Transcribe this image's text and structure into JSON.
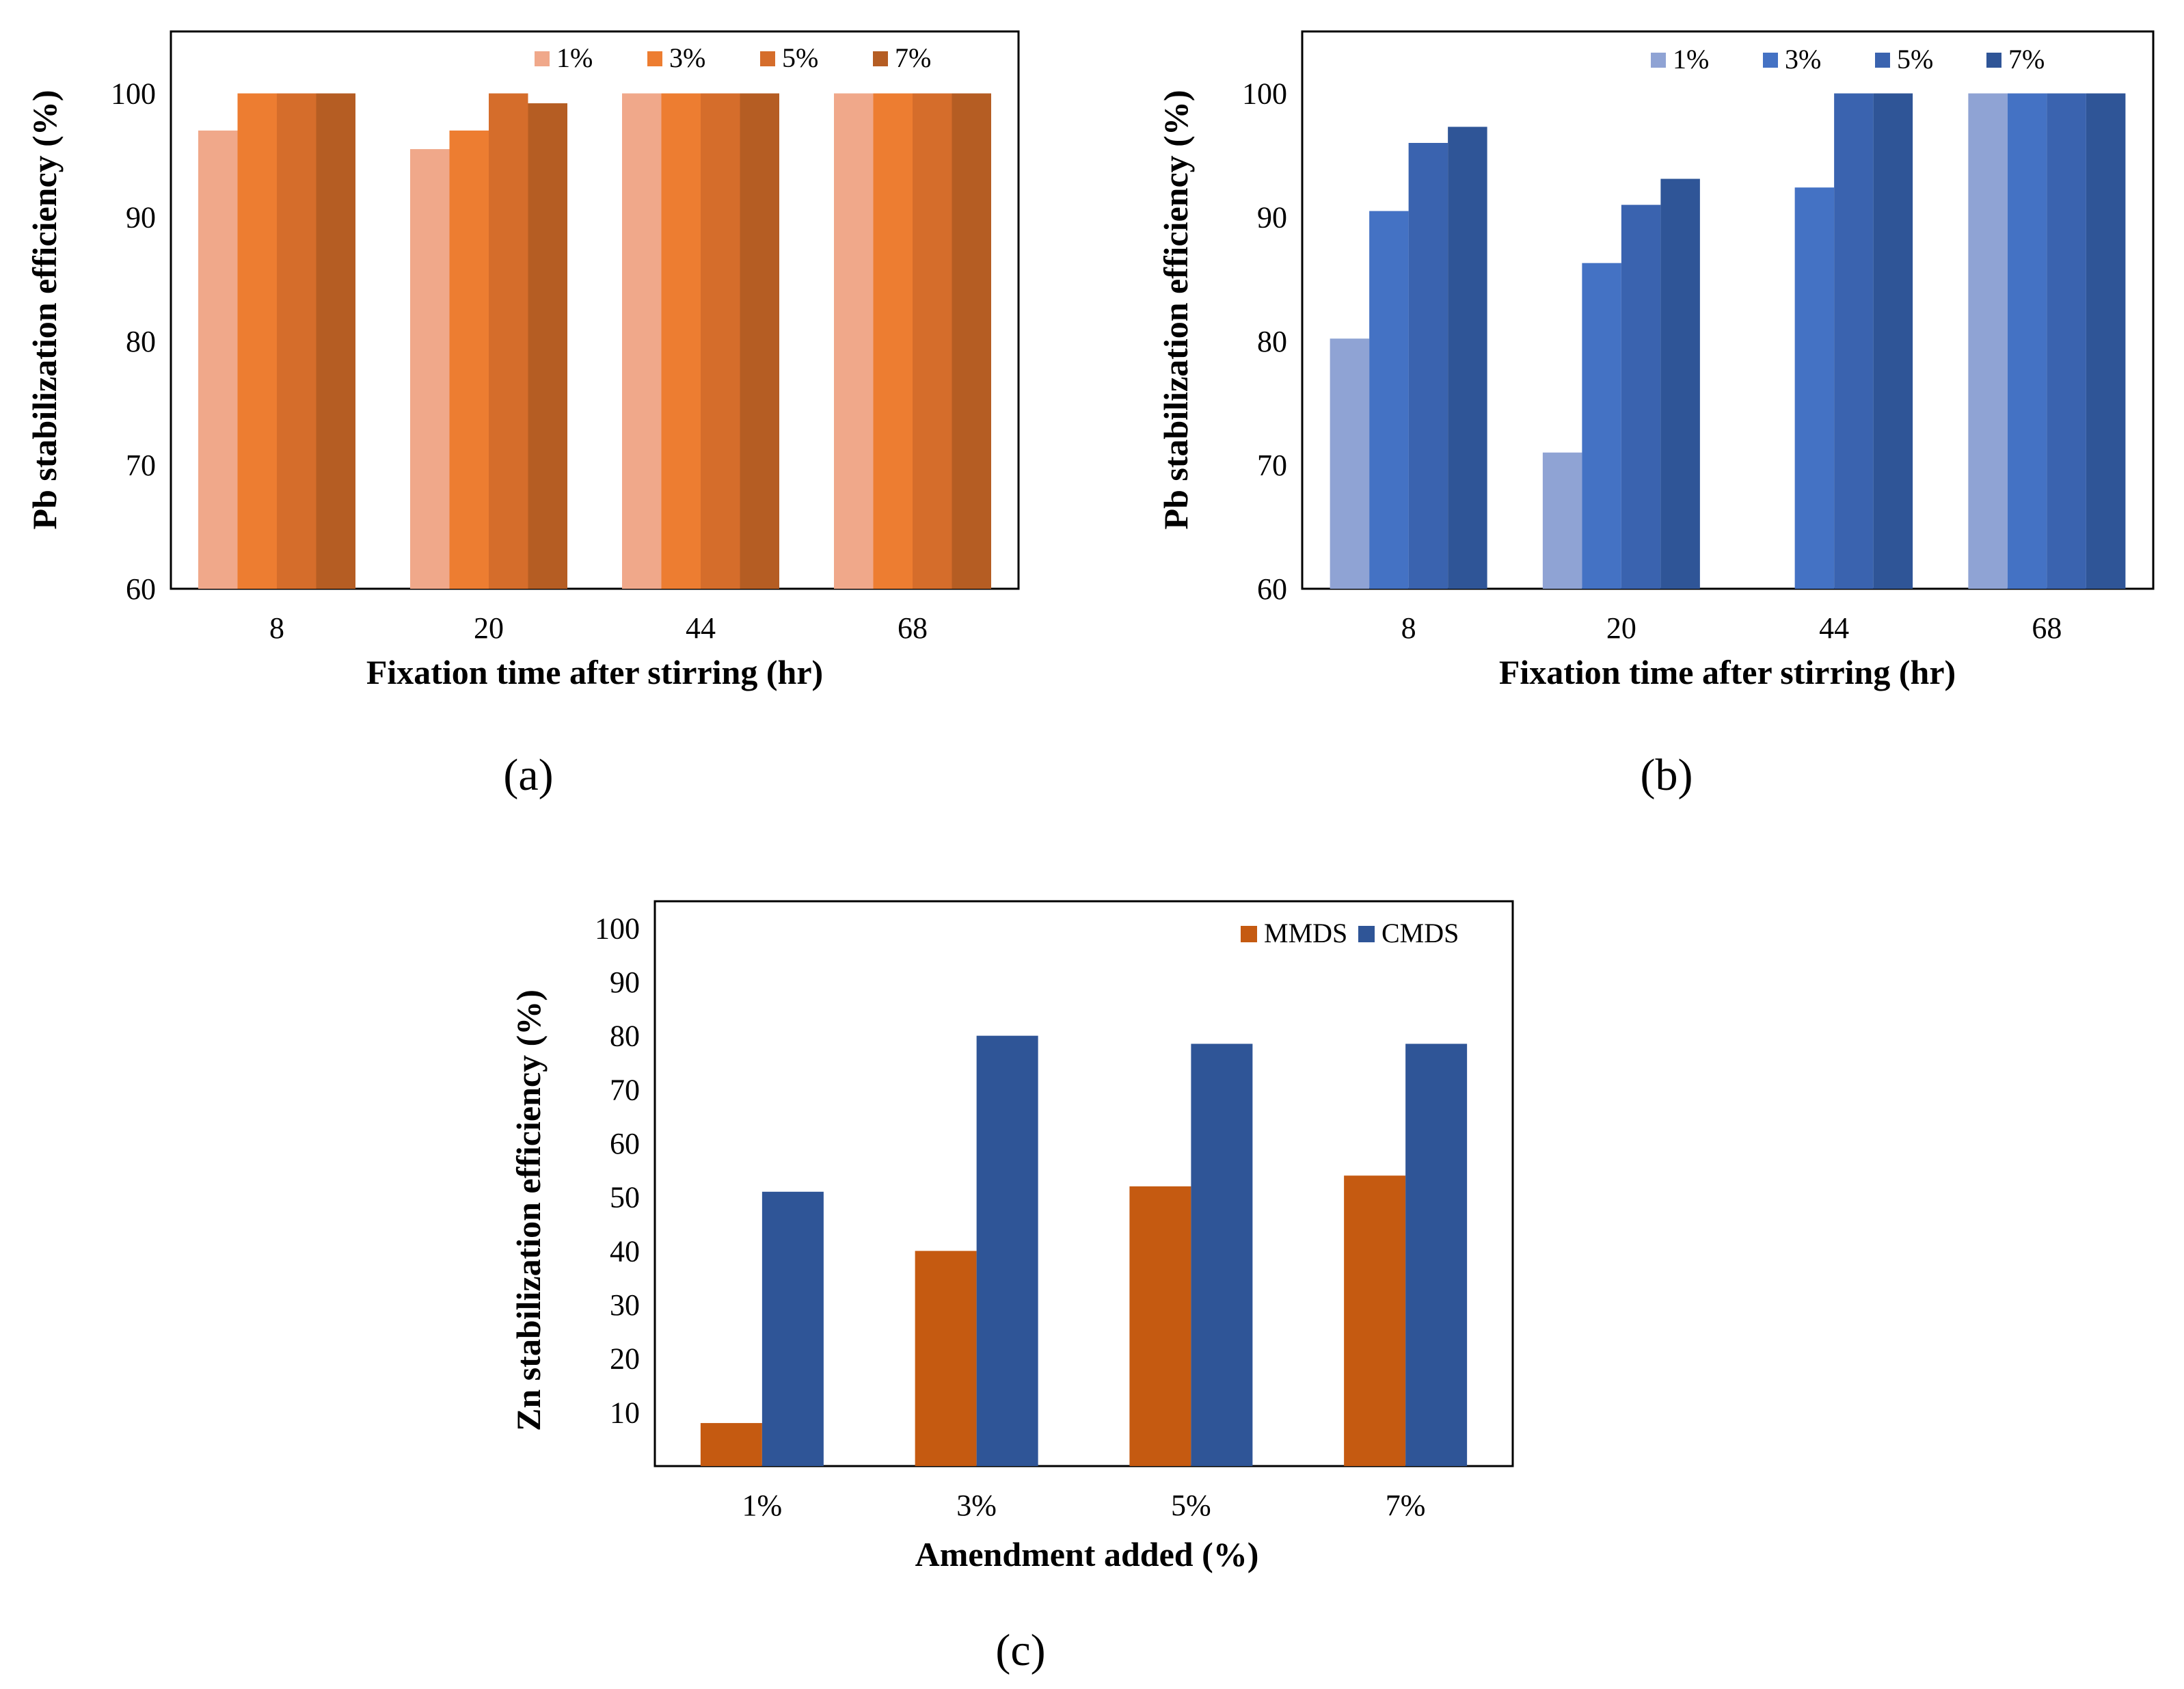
{
  "chart_data": [
    {
      "panel": "a",
      "panel_label": "(a)",
      "type": "bar",
      "categories": [
        "8",
        "20",
        "44",
        "68"
      ],
      "series": [
        {
          "name": "1%",
          "color": "#F0A88A",
          "values": [
            97,
            95.5,
            100,
            100
          ]
        },
        {
          "name": "3%",
          "color": "#ED7D31",
          "values": [
            100,
            97,
            100,
            100
          ]
        },
        {
          "name": "5%",
          "color": "#D56D2B",
          "values": [
            100,
            100,
            100,
            100
          ]
        },
        {
          "name": "7%",
          "color": "#B55D23",
          "values": [
            100,
            99.2,
            100,
            100
          ]
        }
      ],
      "xlabel": "Fixation time after stirring (hr)",
      "ylabel": "Pb stabilization efficiency (%)",
      "ylim": [
        60,
        105
      ],
      "yticks": [
        "60",
        "70",
        "80",
        "90",
        "100"
      ],
      "legend": "top-right"
    },
    {
      "panel": "b",
      "panel_label": "(b)",
      "type": "bar",
      "categories": [
        "8",
        "20",
        "44",
        "68"
      ],
      "series": [
        {
          "name": "1%",
          "color": "#8FA3D4",
          "values": [
            80.2,
            71,
            null,
            100
          ]
        },
        {
          "name": "3%",
          "color": "#4472C4",
          "values": [
            90.5,
            86.3,
            92.4,
            100
          ]
        },
        {
          "name": "5%",
          "color": "#3A63AF",
          "values": [
            96,
            91,
            100,
            100
          ]
        },
        {
          "name": "7%",
          "color": "#2F5597",
          "values": [
            97.3,
            93.1,
            100,
            100
          ]
        }
      ],
      "xlabel": "Fixation time after stirring (hr)",
      "ylabel": "Pb stabilization efficiency (%)",
      "ylim": [
        60,
        105
      ],
      "yticks": [
        "60",
        "70",
        "80",
        "90",
        "100"
      ],
      "legend": "top-right"
    },
    {
      "panel": "c",
      "panel_label": "(c)",
      "type": "bar",
      "categories": [
        "1%",
        "3%",
        "5%",
        "7%"
      ],
      "series": [
        {
          "name": "MMDS",
          "color": "#C55A11",
          "values": [
            8,
            40,
            52,
            54
          ]
        },
        {
          "name": "CMDS",
          "color": "#2F5597",
          "values": [
            51,
            80,
            78.5,
            78.5
          ]
        }
      ],
      "xlabel": "Amendment added (%)",
      "ylabel": "Zn stabilization efficiency (%)",
      "ylim": [
        0,
        105
      ],
      "yticks": [
        "10",
        "20",
        "30",
        "40",
        "50",
        "60",
        "70",
        "80",
        "90",
        "100"
      ],
      "legend": "top-right"
    }
  ]
}
